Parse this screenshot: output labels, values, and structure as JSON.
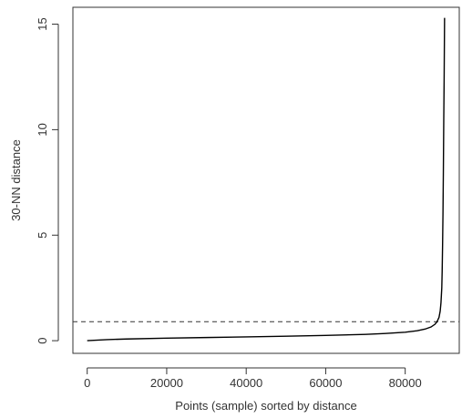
{
  "chart_data": {
    "type": "line",
    "title": "",
    "xlabel": "Points (sample) sorted by distance",
    "ylabel": "30-NN distance",
    "xlim": [
      -3600,
      93600
    ],
    "ylim": [
      -0.6,
      15.8
    ],
    "xticks": [
      0,
      20000,
      40000,
      60000,
      80000
    ],
    "xtick_labels": [
      "0",
      "20000",
      "40000",
      "60000",
      "80000"
    ],
    "yticks": [
      0,
      5,
      10,
      15
    ],
    "ytick_labels": [
      "0",
      "5",
      "10",
      "15"
    ],
    "grid": false,
    "reference_line": {
      "y": 0.9,
      "style": "dashed"
    },
    "series": [
      {
        "x": [
          0,
          5000,
          10000,
          20000,
          30000,
          40000,
          50000,
          60000,
          70000,
          75000,
          80000,
          83000,
          85000,
          86500,
          87500,
          88000,
          88500,
          88800,
          89000,
          89200,
          89300,
          89400,
          89500,
          89600,
          89700,
          89800,
          89900
        ],
        "values": [
          0.0,
          0.05,
          0.08,
          0.12,
          0.15,
          0.18,
          0.21,
          0.25,
          0.3,
          0.34,
          0.4,
          0.47,
          0.55,
          0.65,
          0.78,
          0.9,
          1.1,
          1.4,
          1.8,
          2.5,
          3.3,
          4.5,
          6.0,
          8.0,
          10.5,
          12.5,
          15.3
        ]
      }
    ]
  }
}
